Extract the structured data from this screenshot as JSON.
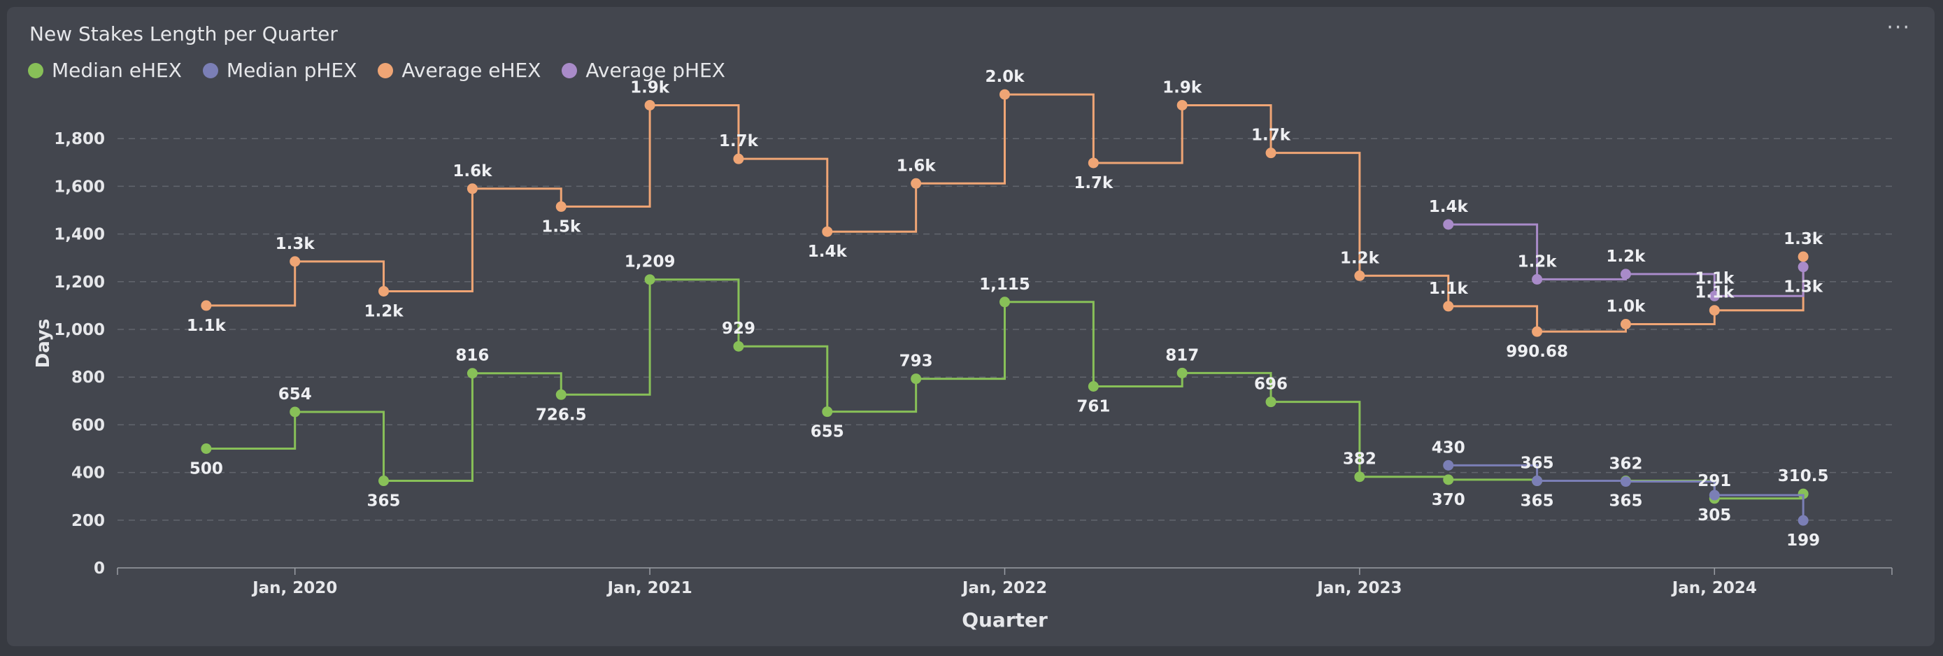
{
  "header": {
    "title": "New Stakes Length per Quarter",
    "menu_label": "···"
  },
  "legend": [
    {
      "name": "Median eHEX",
      "color": "#88c058"
    },
    {
      "name": "Median pHEX",
      "color": "#7b7fb6"
    },
    {
      "name": "Average eHEX",
      "color": "#efa575"
    },
    {
      "name": "Average pHEX",
      "color": "#a98bc9"
    }
  ],
  "chart_data": {
    "type": "line",
    "step": true,
    "xlabel": "Quarter",
    "ylabel": "Days",
    "ylim": [
      0,
      2000
    ],
    "yticks": [
      0,
      200,
      400,
      600,
      800,
      1000,
      1200,
      1400,
      1600,
      1800
    ],
    "ytick_labels": [
      "0",
      "200",
      "400",
      "600",
      "800",
      "1,000",
      "1,200",
      "1,400",
      "1,600",
      "1,800"
    ],
    "xticks": [
      "2020-01",
      "2021-01",
      "2022-01",
      "2023-01",
      "2024-01"
    ],
    "xtick_labels": [
      "Jan, 2020",
      "Jan, 2021",
      "Jan, 2022",
      "Jan, 2023",
      "Jan, 2024"
    ],
    "xlim": [
      "2019-07",
      "2024-07"
    ],
    "grid": true,
    "legend_position": "top-left",
    "series": [
      {
        "name": "Median eHEX",
        "color": "#88c058",
        "x": [
          "2019-10",
          "2020-01",
          "2020-04",
          "2020-07",
          "2020-10",
          "2021-01",
          "2021-04",
          "2021-07",
          "2021-10",
          "2022-01",
          "2022-04",
          "2022-07",
          "2022-10",
          "2023-01",
          "2023-04",
          "2023-07",
          "2023-10",
          "2024-01",
          "2024-04"
        ],
        "values": [
          500,
          654,
          365,
          816,
          726.5,
          1209,
          929,
          655,
          793,
          1115,
          761,
          817,
          696,
          382,
          370,
          365,
          365,
          291,
          310.5
        ],
        "labels": [
          "500",
          "654",
          "365",
          "816",
          "726.5",
          "1,209",
          "929",
          "655",
          "793",
          "1,115",
          "761",
          "817",
          "696",
          "382",
          "370",
          "365",
          "365",
          "291",
          "310.5"
        ],
        "label_pos": [
          "below",
          "above",
          "below",
          "above",
          "below",
          "above",
          "above",
          "below",
          "above",
          "above",
          "below",
          "above",
          "above",
          "above",
          "below",
          "below",
          "below",
          "above",
          "above"
        ]
      },
      {
        "name": "Median pHEX",
        "color": "#7b7fb6",
        "x": [
          "2023-04",
          "2023-07",
          "2023-10",
          "2024-01",
          "2024-04"
        ],
        "values": [
          430,
          365,
          362,
          305,
          199
        ],
        "labels": [
          "430",
          "365",
          "362",
          "305",
          "199"
        ],
        "label_pos": [
          "above",
          "above",
          "above",
          "below",
          "below"
        ]
      },
      {
        "name": "Average eHEX",
        "color": "#efa575",
        "x": [
          "2019-10",
          "2020-01",
          "2020-04",
          "2020-07",
          "2020-10",
          "2021-01",
          "2021-04",
          "2021-07",
          "2021-10",
          "2022-01",
          "2022-04",
          "2022-07",
          "2022-10",
          "2023-01",
          "2023-04",
          "2023-07",
          "2023-10",
          "2024-01",
          "2024-04"
        ],
        "values": [
          1100,
          1285,
          1160,
          1590,
          1515,
          1940,
          1715,
          1410,
          1612,
          1985,
          1698,
          1940,
          1740,
          1225,
          1097,
          990.68,
          1022,
          1080,
          1305
        ],
        "labels": [
          "1.1k",
          "1.3k",
          "1.2k",
          "1.6k",
          "1.5k",
          "1.9k",
          "1.7k",
          "1.4k",
          "1.6k",
          "2.0k",
          "1.7k",
          "1.9k",
          "1.7k",
          "1.2k",
          "1.1k",
          "990.68",
          "1.0k",
          "1.1k",
          "1.3k"
        ],
        "label_pos": [
          "below",
          "above",
          "below",
          "above",
          "below",
          "above",
          "above",
          "below",
          "above",
          "above",
          "below",
          "above",
          "above",
          "above",
          "above",
          "below",
          "above",
          "above",
          "above"
        ]
      },
      {
        "name": "Average pHEX",
        "color": "#a98bc9",
        "x": [
          "2023-04",
          "2023-07",
          "2023-10",
          "2024-01",
          "2024-04"
        ],
        "values": [
          1440,
          1210,
          1232,
          1140,
          1262
        ],
        "labels": [
          "1.4k",
          "1.2k",
          "1.2k",
          "1.1k",
          "1.3k"
        ],
        "label_pos": [
          "above",
          "above",
          "above",
          "above",
          "below"
        ]
      }
    ]
  }
}
